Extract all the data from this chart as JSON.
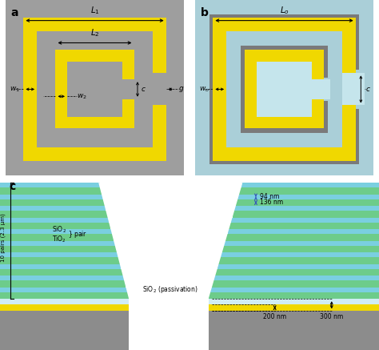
{
  "bg_a": "#9e9e9e",
  "bg_b": "#aacfd8",
  "bg_b_light": "#c5e5ec",
  "yellow": "#f0d800",
  "gray_ring": "#7a7a7a",
  "green_layer": "#6dcc8a",
  "cyan_layer": "#7acfe0",
  "white_color": "#ffffff",
  "gaas_color": "#8c8c8c",
  "au_color": "#f0d800",
  "sio2_pass_color": "#d0edf5",
  "label_a": "a",
  "label_b": "b",
  "label_c": "c"
}
